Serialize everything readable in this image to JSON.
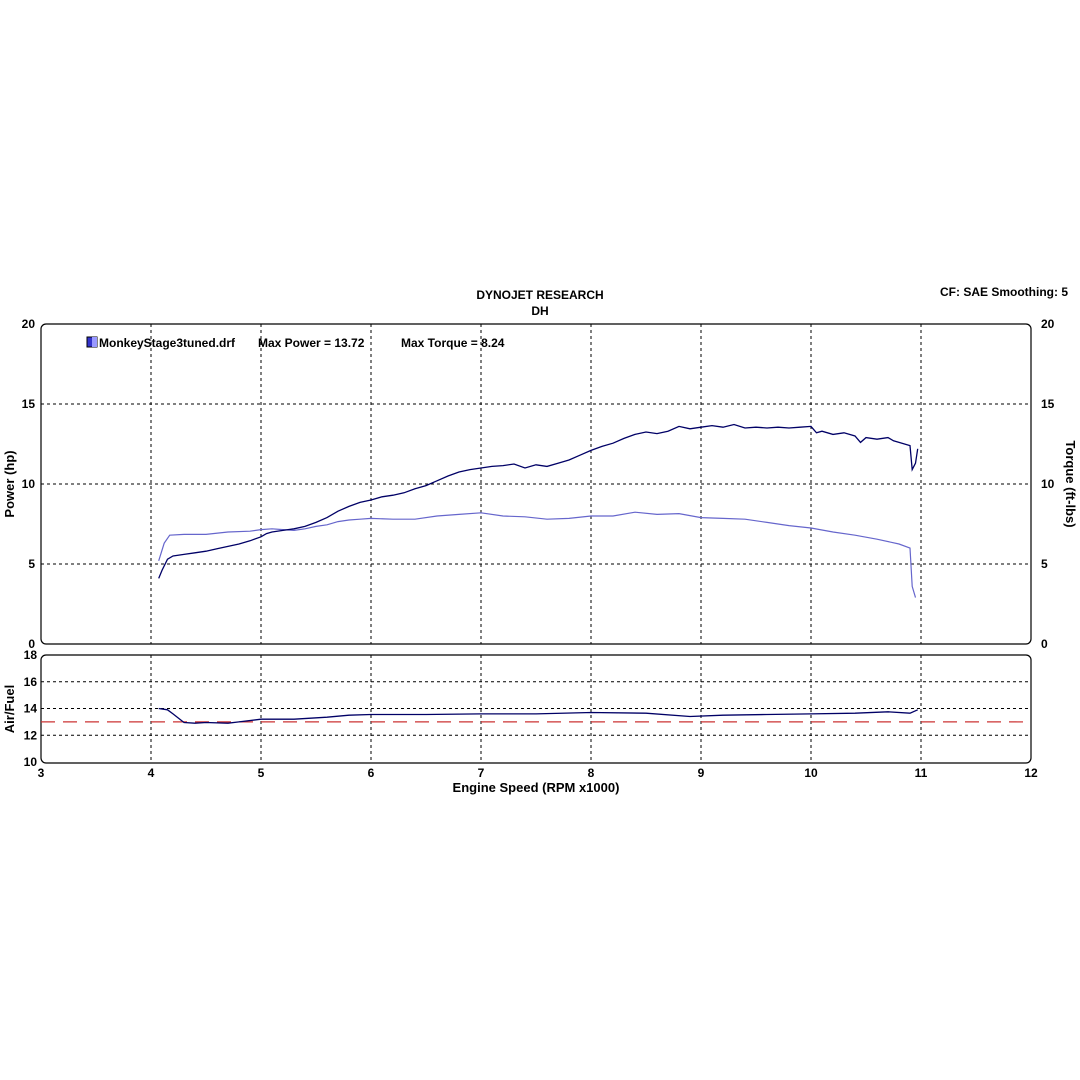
{
  "header": {
    "title": "DYNOJET RESEARCH",
    "subtitle": "DH",
    "settings": "CF: SAE  Smoothing: 5"
  },
  "legend": {
    "file": "MonkeyStage3tuned.drf",
    "max_power": "Max Power = 13.72",
    "max_torque": "Max Torque = 8.24"
  },
  "colors": {
    "power": "#000066",
    "torque": "#6666cc",
    "afr": "#000066",
    "afr_target": "#cc3333",
    "legend_swatch": "#3333cc"
  },
  "chart_data": [
    {
      "type": "line",
      "xlabel": "",
      "ylabel": "Power (hp)",
      "y2label": "Torque (ft-lbs)",
      "xlim": [
        3,
        12
      ],
      "ylim": [
        0,
        20
      ],
      "y2lim": [
        0,
        20
      ],
      "xticks": [
        "3",
        "4",
        "5",
        "6",
        "7",
        "8",
        "9",
        "10",
        "11",
        "12"
      ],
      "yticks": [
        "0",
        "5",
        "10",
        "15",
        "20"
      ],
      "grid": true,
      "legend_position": "top-left",
      "series": [
        {
          "name": "Power",
          "axis": "left",
          "points": [
            [
              4.07,
              4.1
            ],
            [
              4.1,
              4.6
            ],
            [
              4.15,
              5.3
            ],
            [
              4.2,
              5.5
            ],
            [
              4.3,
              5.6
            ],
            [
              4.4,
              5.7
            ],
            [
              4.5,
              5.8
            ],
            [
              4.6,
              5.95
            ],
            [
              4.7,
              6.1
            ],
            [
              4.8,
              6.25
            ],
            [
              4.9,
              6.45
            ],
            [
              5.0,
              6.7
            ],
            [
              5.05,
              6.9
            ],
            [
              5.1,
              7.0
            ],
            [
              5.2,
              7.1
            ],
            [
              5.3,
              7.2
            ],
            [
              5.4,
              7.35
            ],
            [
              5.5,
              7.6
            ],
            [
              5.6,
              7.9
            ],
            [
              5.7,
              8.3
            ],
            [
              5.8,
              8.6
            ],
            [
              5.9,
              8.85
            ],
            [
              6.0,
              9.0
            ],
            [
              6.1,
              9.2
            ],
            [
              6.2,
              9.3
            ],
            [
              6.3,
              9.45
            ],
            [
              6.4,
              9.7
            ],
            [
              6.5,
              9.9
            ],
            [
              6.6,
              10.2
            ],
            [
              6.7,
              10.5
            ],
            [
              6.8,
              10.75
            ],
            [
              6.9,
              10.9
            ],
            [
              7.0,
              11.0
            ],
            [
              7.1,
              11.1
            ],
            [
              7.2,
              11.15
            ],
            [
              7.3,
              11.25
            ],
            [
              7.4,
              11.0
            ],
            [
              7.5,
              11.2
            ],
            [
              7.6,
              11.1
            ],
            [
              7.7,
              11.3
            ],
            [
              7.8,
              11.5
            ],
            [
              7.9,
              11.8
            ],
            [
              8.0,
              12.1
            ],
            [
              8.1,
              12.35
            ],
            [
              8.2,
              12.55
            ],
            [
              8.3,
              12.85
            ],
            [
              8.4,
              13.1
            ],
            [
              8.5,
              13.25
            ],
            [
              8.6,
              13.15
            ],
            [
              8.7,
              13.3
            ],
            [
              8.8,
              13.6
            ],
            [
              8.9,
              13.45
            ],
            [
              9.0,
              13.55
            ],
            [
              9.1,
              13.65
            ],
            [
              9.2,
              13.55
            ],
            [
              9.3,
              13.72
            ],
            [
              9.4,
              13.5
            ],
            [
              9.5,
              13.55
            ],
            [
              9.6,
              13.5
            ],
            [
              9.7,
              13.55
            ],
            [
              9.8,
              13.5
            ],
            [
              9.9,
              13.55
            ],
            [
              10.0,
              13.6
            ],
            [
              10.05,
              13.2
            ],
            [
              10.1,
              13.3
            ],
            [
              10.2,
              13.1
            ],
            [
              10.3,
              13.2
            ],
            [
              10.4,
              13.0
            ],
            [
              10.45,
              12.6
            ],
            [
              10.5,
              12.9
            ],
            [
              10.6,
              12.8
            ],
            [
              10.7,
              12.9
            ],
            [
              10.75,
              12.7
            ],
            [
              10.8,
              12.6
            ],
            [
              10.85,
              12.5
            ],
            [
              10.9,
              12.4
            ],
            [
              10.92,
              10.9
            ],
            [
              10.95,
              11.3
            ],
            [
              10.97,
              12.2
            ]
          ]
        },
        {
          "name": "Torque",
          "axis": "right",
          "points": [
            [
              4.07,
              5.2
            ],
            [
              4.12,
              6.3
            ],
            [
              4.17,
              6.8
            ],
            [
              4.3,
              6.85
            ],
            [
              4.5,
              6.85
            ],
            [
              4.7,
              7.0
            ],
            [
              4.9,
              7.05
            ],
            [
              5.0,
              7.15
            ],
            [
              5.1,
              7.2
            ],
            [
              5.2,
              7.15
            ],
            [
              5.3,
              7.1
            ],
            [
              5.4,
              7.2
            ],
            [
              5.5,
              7.35
            ],
            [
              5.6,
              7.45
            ],
            [
              5.7,
              7.65
            ],
            [
              5.8,
              7.75
            ],
            [
              5.9,
              7.8
            ],
            [
              6.0,
              7.85
            ],
            [
              6.2,
              7.8
            ],
            [
              6.4,
              7.8
            ],
            [
              6.6,
              8.0
            ],
            [
              6.8,
              8.1
            ],
            [
              7.0,
              8.2
            ],
            [
              7.2,
              8.0
            ],
            [
              7.4,
              7.95
            ],
            [
              7.6,
              7.8
            ],
            [
              7.8,
              7.85
            ],
            [
              8.0,
              8.0
            ],
            [
              8.2,
              8.0
            ],
            [
              8.4,
              8.24
            ],
            [
              8.6,
              8.1
            ],
            [
              8.8,
              8.15
            ],
            [
              9.0,
              7.9
            ],
            [
              9.2,
              7.85
            ],
            [
              9.4,
              7.8
            ],
            [
              9.6,
              7.6
            ],
            [
              9.8,
              7.4
            ],
            [
              10.0,
              7.25
            ],
            [
              10.2,
              7.0
            ],
            [
              10.4,
              6.8
            ],
            [
              10.6,
              6.55
            ],
            [
              10.8,
              6.25
            ],
            [
              10.9,
              6.0
            ],
            [
              10.92,
              3.6
            ],
            [
              10.95,
              2.9
            ]
          ]
        }
      ]
    },
    {
      "type": "line",
      "xlabel": "Engine Speed (RPM x1000)",
      "ylabel": "Air/Fuel",
      "xlim": [
        3,
        12
      ],
      "ylim": [
        10,
        18
      ],
      "yticks": [
        "10",
        "12",
        "14",
        "16",
        "18"
      ],
      "grid": true,
      "series": [
        {
          "name": "Air/Fuel",
          "points": [
            [
              4.07,
              14.0
            ],
            [
              4.15,
              13.9
            ],
            [
              4.2,
              13.6
            ],
            [
              4.3,
              12.95
            ],
            [
              4.4,
              12.9
            ],
            [
              4.5,
              12.95
            ],
            [
              4.7,
              12.9
            ],
            [
              4.8,
              13.0
            ],
            [
              5.0,
              13.2
            ],
            [
              5.3,
              13.2
            ],
            [
              5.6,
              13.35
            ],
            [
              5.8,
              13.5
            ],
            [
              6.0,
              13.55
            ],
            [
              6.5,
              13.55
            ],
            [
              7.0,
              13.6
            ],
            [
              7.5,
              13.6
            ],
            [
              8.0,
              13.7
            ],
            [
              8.5,
              13.65
            ],
            [
              8.9,
              13.4
            ],
            [
              9.2,
              13.5
            ],
            [
              9.6,
              13.55
            ],
            [
              10.0,
              13.6
            ],
            [
              10.4,
              13.65
            ],
            [
              10.7,
              13.75
            ],
            [
              10.9,
              13.65
            ],
            [
              10.97,
              13.9
            ]
          ]
        },
        {
          "name": "",
          "dashed": true,
          "points": [
            [
              3,
              13.0
            ],
            [
              12,
              13.0
            ]
          ]
        }
      ]
    }
  ]
}
